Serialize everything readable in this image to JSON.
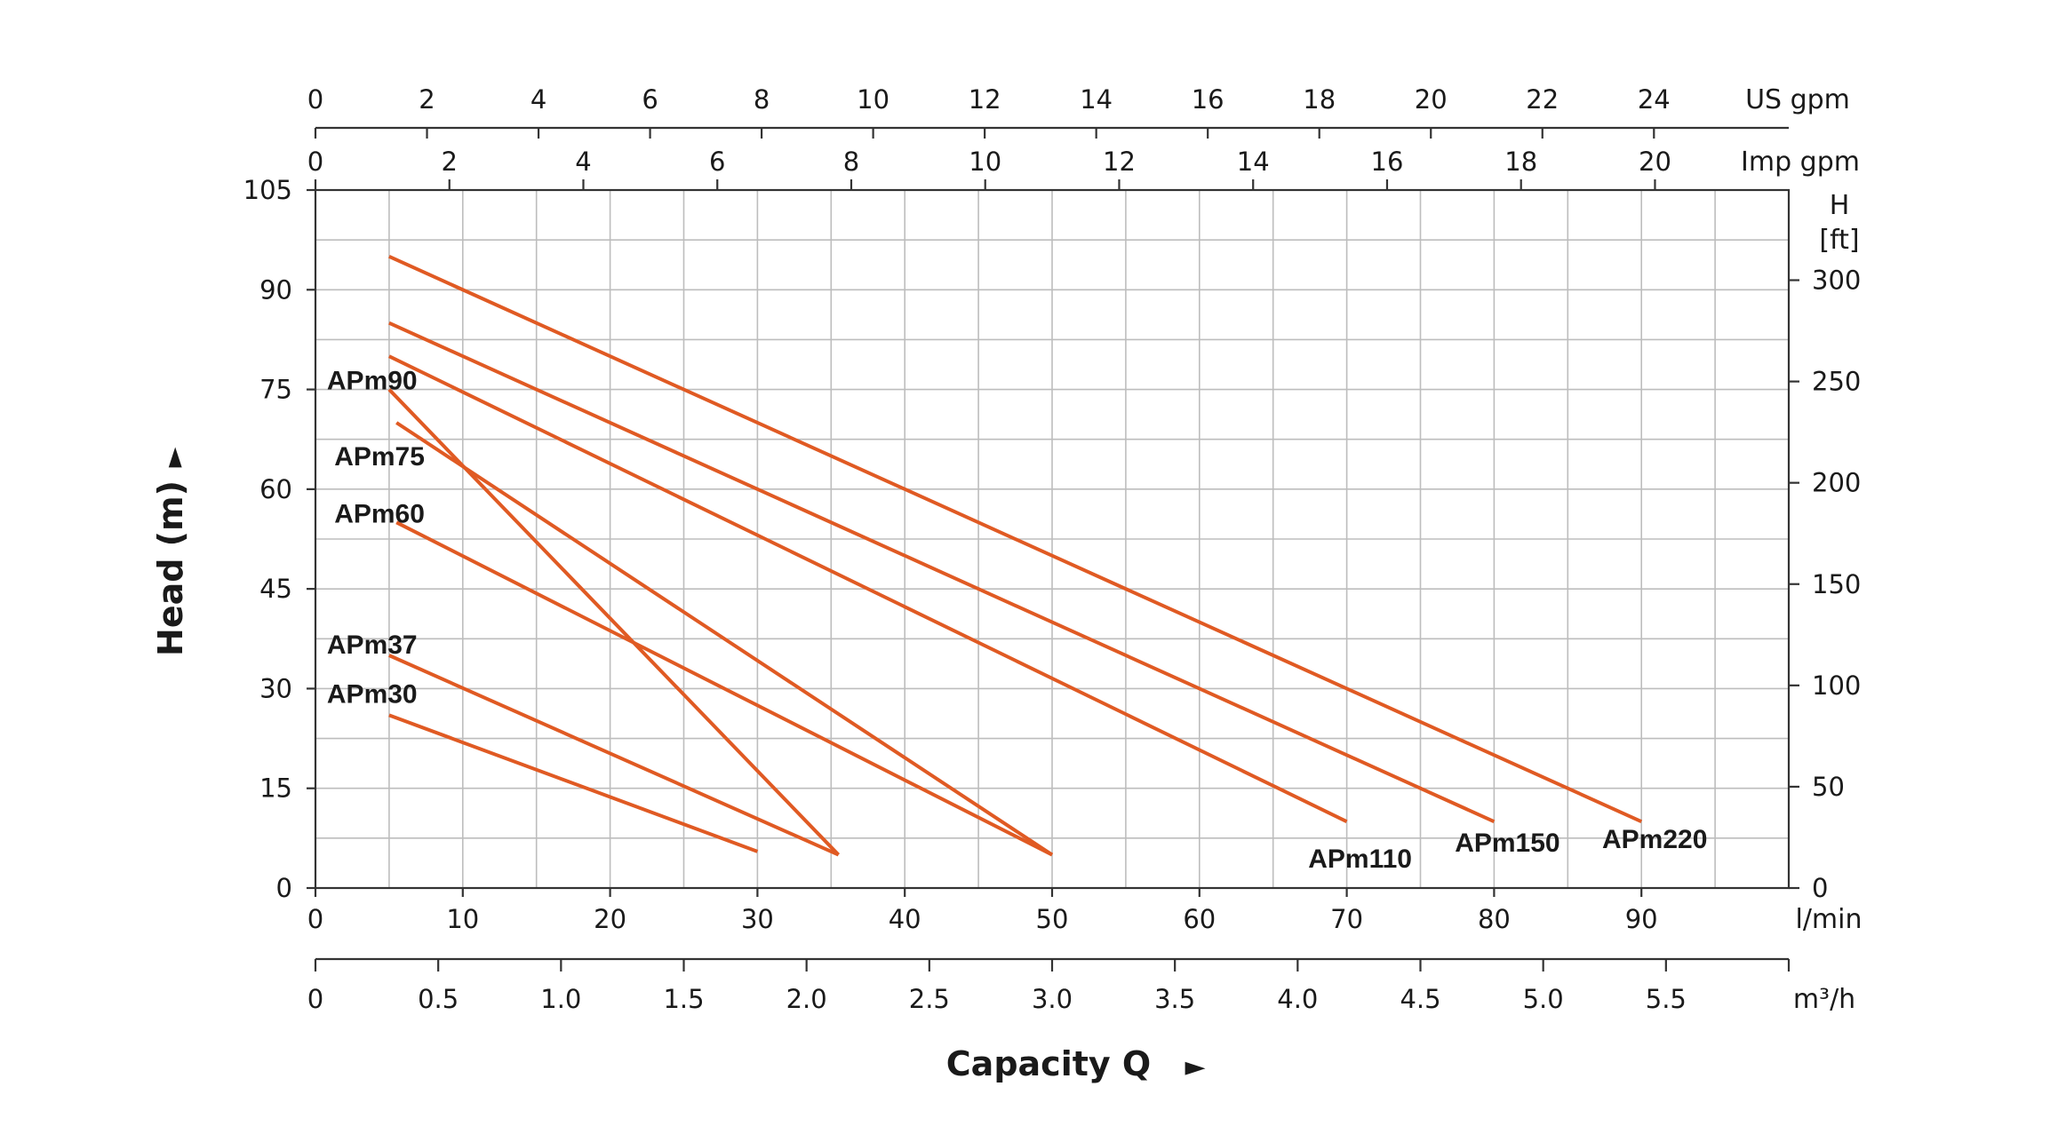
{
  "chart_data": {
    "type": "line",
    "xlabel": "Capacity Q",
    "xlabel_arrow": "►",
    "ylabel": "Head (m)",
    "ylabel_arrow": "►",
    "x_unit": "l/min",
    "x_range": [
      0,
      100
    ],
    "x_ticks": [
      0,
      10,
      20,
      30,
      40,
      50,
      60,
      70,
      80,
      90
    ],
    "y_range": [
      0,
      105
    ],
    "y_ticks": [
      0,
      15,
      30,
      45,
      60,
      75,
      90,
      105
    ],
    "y_unit": "m",
    "grid": true,
    "right_axis": {
      "label_line1": "H",
      "label_line2": "[ft]",
      "ticks": [
        0,
        50,
        100,
        150,
        200,
        250,
        300
      ],
      "m_per_unit": 0.3048
    },
    "bottom_axis_2": {
      "unit": "m³/h",
      "ticks": [
        "0",
        "0.5",
        "1.0",
        "1.5",
        "2.0",
        "2.5",
        "3.0",
        "3.5",
        "4.0",
        "4.5",
        "5.0",
        "5.5"
      ],
      "lmin_per_unit": 16.6667
    },
    "top_axis_1": {
      "unit": "US gpm",
      "ticks": [
        "0",
        "2",
        "4",
        "6",
        "8",
        "10",
        "12",
        "14",
        "16",
        "18",
        "20",
        "22",
        "24"
      ],
      "lmin_per_unit": 3.7854
    },
    "top_axis_2": {
      "unit": "Imp gpm",
      "ticks": [
        "0",
        "2",
        "4",
        "6",
        "8",
        "10",
        "12",
        "14",
        "16",
        "18",
        "20"
      ],
      "lmin_per_unit": 4.546
    },
    "series": [
      {
        "name": "APm30",
        "x": [
          5,
          30
        ],
        "y": [
          26,
          5.5
        ],
        "label_at": "start"
      },
      {
        "name": "APm37",
        "x": [
          5,
          35.5
        ],
        "y": [
          35,
          5
        ],
        "label_at": "start"
      },
      {
        "name": "APm60",
        "x": [
          5.5,
          50
        ],
        "y": [
          55,
          5
        ],
        "label_at": "start"
      },
      {
        "name": "APm75",
        "x": [
          5.5,
          50
        ],
        "y": [
          70,
          5
        ],
        "label_at": "start"
      },
      {
        "name": "APm90",
        "x": [
          5,
          35.5
        ],
        "y": [
          75,
          5
        ],
        "label_at": "start"
      },
      {
        "name": "APm110",
        "x": [
          5,
          70
        ],
        "y": [
          80,
          10
        ],
        "label_at": "end"
      },
      {
        "name": "APm150",
        "x": [
          5,
          80
        ],
        "y": [
          85,
          10
        ],
        "label_at": "end"
      },
      {
        "name": "APm220",
        "x": [
          5,
          90
        ],
        "y": [
          95,
          10
        ],
        "label_at": "end"
      }
    ],
    "line_color": "#e05a23"
  }
}
